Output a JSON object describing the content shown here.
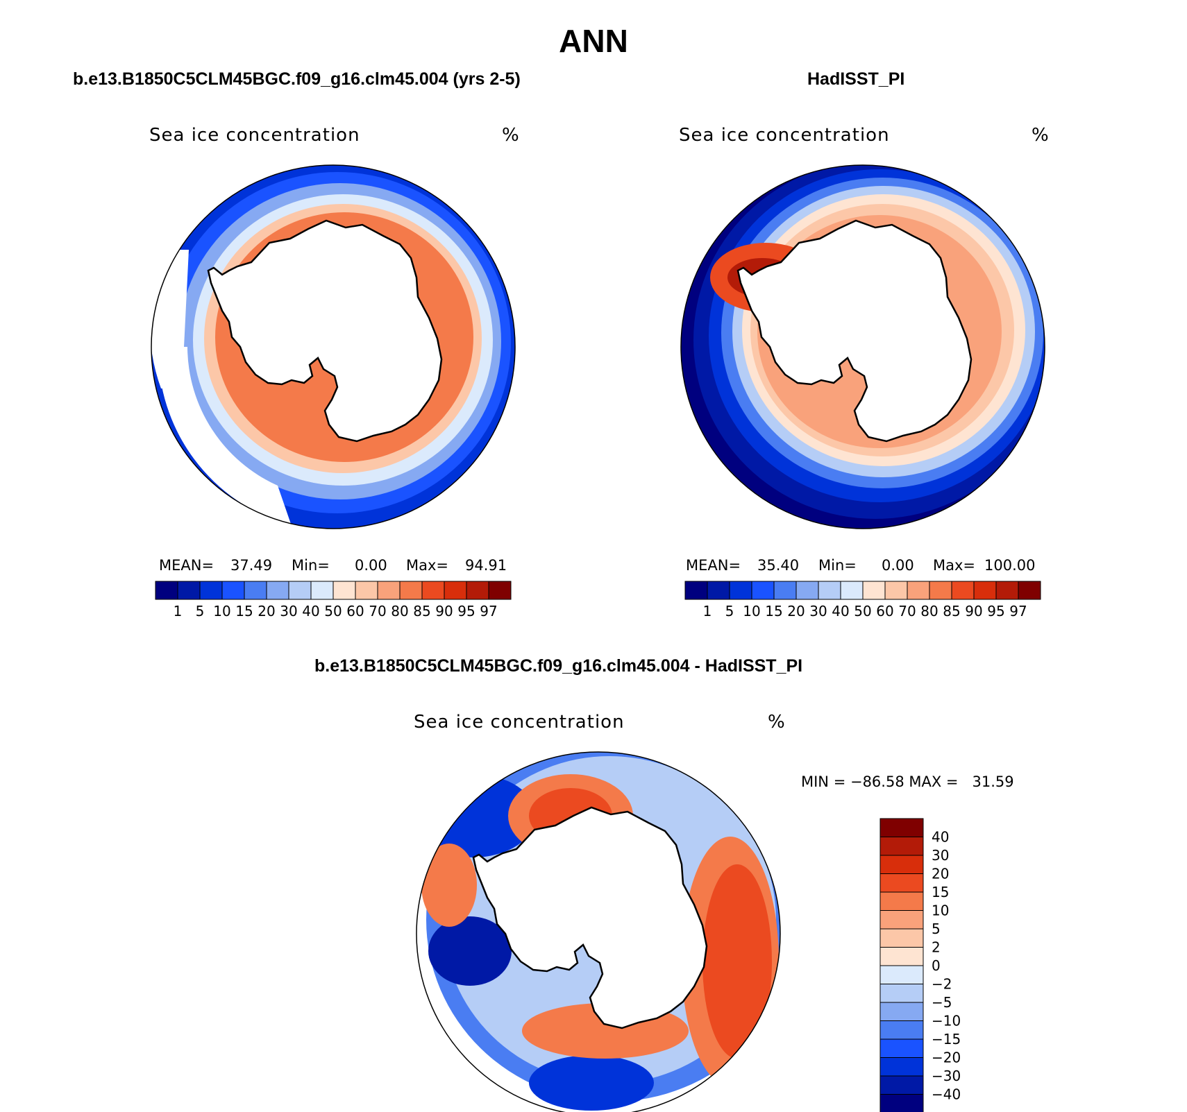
{
  "figure": {
    "season": "ANN",
    "ice_colors": [
      "#00007f",
      "#0019a6",
      "#0033d9",
      "#1a53ff",
      "#4a7df2",
      "#86a9f2",
      "#b5cdf6",
      "#dbeafc",
      "#fee4d2",
      "#fcc7a8",
      "#f9a27b",
      "#f47a4a",
      "#eb4a20",
      "#d82e0b",
      "#b31b08",
      "#7f0000"
    ],
    "diff_colors": [
      "#00007f",
      "#0019a6",
      "#0033d9",
      "#1a53ff",
      "#4a7df2",
      "#86a9f2",
      "#b5cdf6",
      "#dbeafc",
      "#fee4d2",
      "#fcc7a8",
      "#f9a27b",
      "#f47a4a",
      "#eb4a20",
      "#d82e0b",
      "#b31b08",
      "#7f0000"
    ]
  },
  "panels": [
    {
      "title": "b.e13.B1850C5CLM45BGC.f09_g16.clm45.004 (yrs 2-5)",
      "field_label": "Sea ice concentration",
      "units": "%",
      "mean_label": "MEAN=",
      "mean": "37.49",
      "min_label": "Min=",
      "min": "0.00",
      "max_label": "Max=",
      "max": "94.91"
    },
    {
      "title": "HadISST_PI",
      "field_label": "Sea ice concentration",
      "units": "%",
      "mean_label": "MEAN=",
      "mean": "35.40",
      "min_label": "Min=",
      "min": "0.00",
      "max_label": "Max=",
      "max": "100.00"
    }
  ],
  "difference": {
    "title": "b.e13.B1850C5CLM45BGC.f09_g16.clm45.004 - HadISST_PI",
    "field_label": "Sea ice concentration",
    "units": "%",
    "range_text": "MIN = −86.58 MAX =   31.59"
  },
  "chart_data": [
    {
      "type": "heatmap",
      "projection": "south-polar-stereographic",
      "title": "b.e13.B1850C5CLM45BGC.f09_g16.clm45.004 (yrs 2-5)",
      "variable": "Sea ice concentration",
      "units": "%",
      "stats": {
        "mean": 37.49,
        "min": 0.0,
        "max": 94.91
      },
      "colorbar_ticks": [
        "1",
        "5",
        "10",
        "15",
        "20",
        "30",
        "40",
        "50",
        "60",
        "70",
        "80",
        "85",
        "90",
        "95",
        "97"
      ],
      "colorbar_orientation": "horizontal"
    },
    {
      "type": "heatmap",
      "projection": "south-polar-stereographic",
      "title": "HadISST_PI",
      "variable": "Sea ice concentration",
      "units": "%",
      "stats": {
        "mean": 35.4,
        "min": 0.0,
        "max": 100.0
      },
      "colorbar_ticks": [
        "1",
        "5",
        "10",
        "15",
        "20",
        "30",
        "40",
        "50",
        "60",
        "70",
        "80",
        "85",
        "90",
        "95",
        "97"
      ],
      "colorbar_orientation": "horizontal"
    },
    {
      "type": "heatmap",
      "projection": "south-polar-stereographic",
      "title": "b.e13.B1850C5CLM45BGC.f09_g16.clm45.004 - HadISST_PI",
      "variable": "Sea ice concentration",
      "units": "%",
      "stats": {
        "min": -86.58,
        "max": 31.59
      },
      "colorbar_ticks": [
        "40",
        "30",
        "20",
        "15",
        "10",
        "5",
        "2",
        "0",
        "−2",
        "−5",
        "−10",
        "−15",
        "−20",
        "−30",
        "−40"
      ],
      "colorbar_orientation": "vertical"
    }
  ]
}
